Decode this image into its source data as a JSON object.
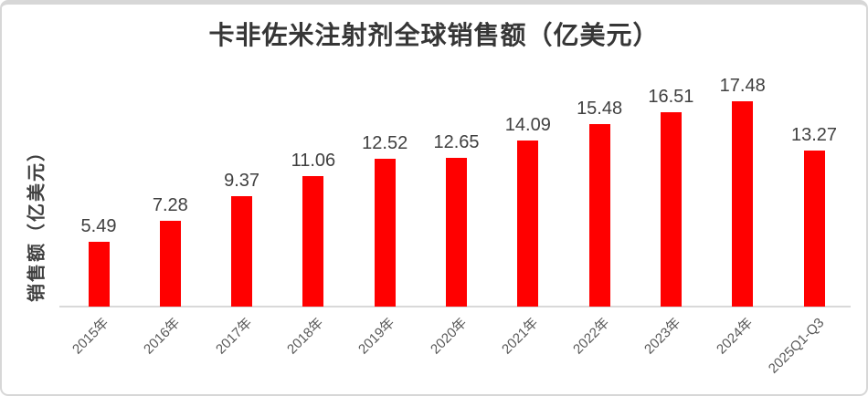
{
  "chart_data": {
    "type": "bar",
    "title": "卡非佐米注射剂全球销售额（亿美元）",
    "ylabel": "销售额（亿美元）",
    "xlabel": "",
    "categories": [
      "2015年",
      "2016年",
      "2017年",
      "2018年",
      "2019年",
      "2020年",
      "2021年",
      "2022年",
      "2023年",
      "2024年",
      "2025Q1-Q3"
    ],
    "values": [
      5.49,
      7.28,
      9.37,
      11.06,
      12.52,
      12.65,
      14.09,
      15.48,
      16.51,
      17.48,
      13.27
    ],
    "data_labels_visible": true,
    "value_axis_ticks_visible": false,
    "grid": false,
    "legend": false,
    "colors": {
      "bar": "#FF0000",
      "data_label": "#404040",
      "tick_label": "#595959",
      "axis_line": "#D9D9D9",
      "title": "#363636",
      "frame_border": "#D7D7D7"
    }
  }
}
